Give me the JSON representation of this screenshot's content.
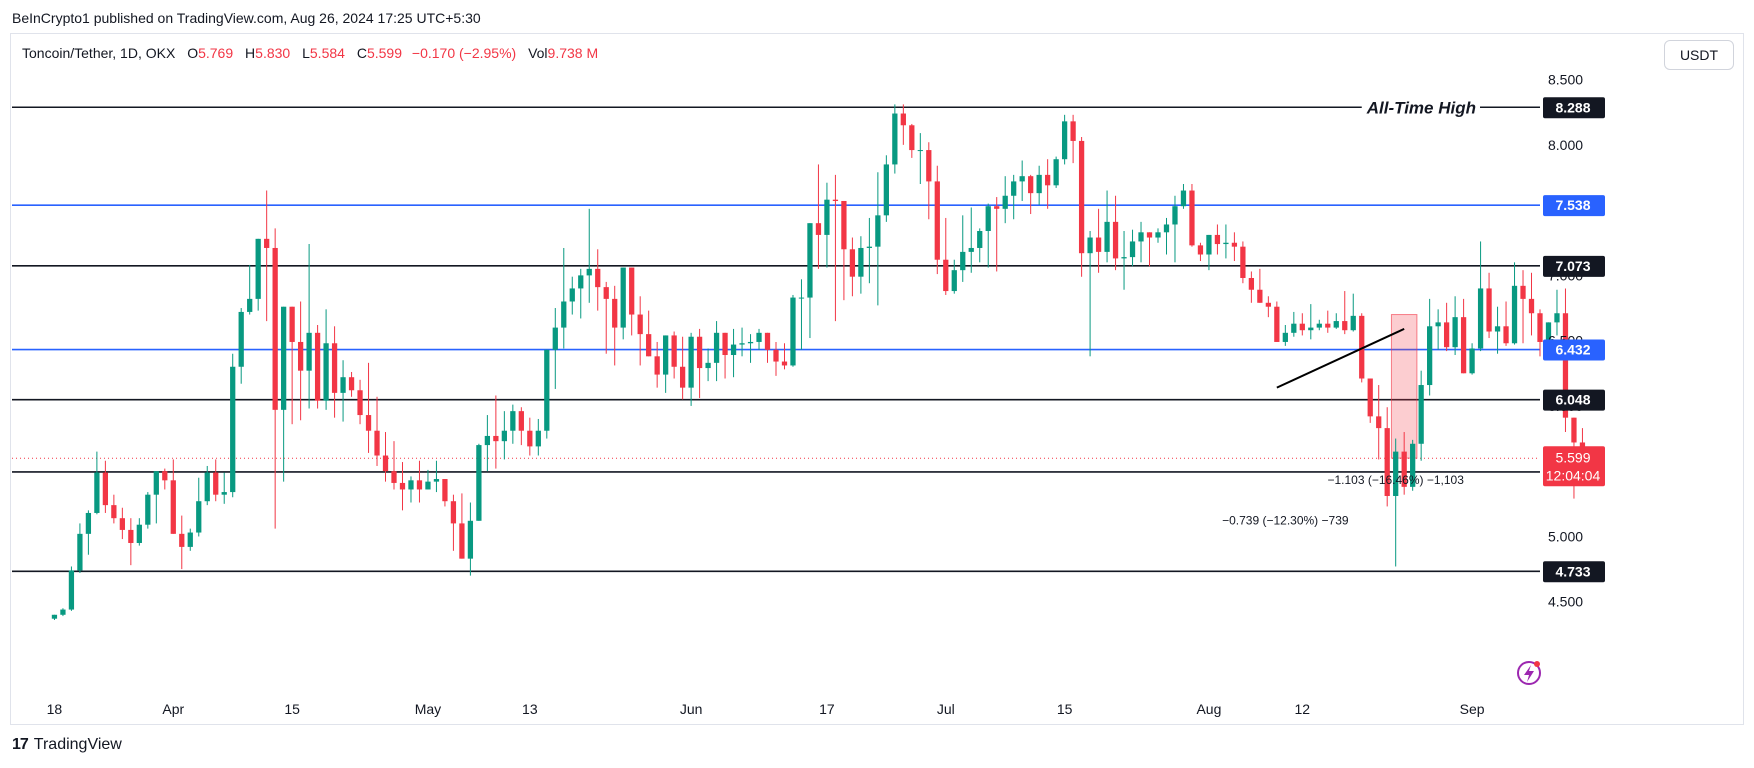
{
  "publisher": "BeInCrypto1 published on TradingView.com, Aug 26, 2024 17:25 UTC+5:30",
  "legend": {
    "symbol": "Toncoin/Tether, 1D, OKX",
    "open_key": "O",
    "open_val": "5.769",
    "high_key": "H",
    "high_val": "5.830",
    "low_key": "L",
    "low_val": "5.584",
    "close_key": "C",
    "close_val": "5.599",
    "change": "−0.170 (−2.95%)",
    "vol_key": "Vol",
    "vol_val": "9.738 M"
  },
  "currency_button": "USDT",
  "footer": {
    "brand": "TradingView",
    "logo_mark": "17"
  },
  "colors": {
    "up": "#089981",
    "down": "#f23645",
    "support_line": "#131722",
    "blue_line": "#2962ff",
    "grid_text": "#131722"
  },
  "chart_data": {
    "type": "candlestick",
    "y_scale": "linear",
    "ylim": [
      4.36,
      8.65
    ],
    "y_tick_labels": [
      "8.500",
      "8.000",
      "7.500",
      "7.000",
      "6.500",
      "6.000",
      "5.500",
      "5.000",
      "4.500"
    ],
    "y_tick_values": [
      8.5,
      8.0,
      7.5,
      7.0,
      6.5,
      6.0,
      5.5,
      5.0,
      4.5
    ],
    "x_tick_labels": [
      {
        "label": "18",
        "date": "2024-03-18"
      },
      {
        "label": "Apr",
        "date": "2024-04-01"
      },
      {
        "label": "15",
        "date": "2024-04-15"
      },
      {
        "label": "May",
        "date": "2024-05-01"
      },
      {
        "label": "13",
        "date": "2024-05-13"
      },
      {
        "label": "Jun",
        "date": "2024-06-01"
      },
      {
        "label": "17",
        "date": "2024-06-17"
      },
      {
        "label": "Jul",
        "date": "2024-07-01"
      },
      {
        "label": "15",
        "date": "2024-07-15"
      },
      {
        "label": "Aug",
        "date": "2024-08-01"
      },
      {
        "label": "12",
        "date": "2024-08-12"
      },
      {
        "label": "Sep",
        "date": "2024-09-01"
      }
    ],
    "date_range": [
      "2024-03-13",
      "2024-09-09"
    ],
    "first_candle_date": "2024-03-18",
    "candles_ohlc": [
      [
        4.37,
        4.4,
        4.36,
        4.4
      ],
      [
        4.4,
        4.45,
        4.39,
        4.44
      ],
      [
        4.44,
        4.77,
        4.43,
        4.74
      ],
      [
        4.74,
        5.1,
        4.72,
        5.02
      ],
      [
        5.02,
        5.2,
        4.86,
        5.18
      ],
      [
        5.18,
        5.65,
        5.17,
        5.49
      ],
      [
        5.49,
        5.58,
        5.18,
        5.24
      ],
      [
        5.24,
        5.32,
        5.1,
        5.14
      ],
      [
        5.14,
        5.22,
        4.98,
        5.05
      ],
      [
        5.05,
        5.14,
        4.78,
        4.95
      ],
      [
        4.95,
        5.14,
        4.93,
        5.09
      ],
      [
        5.09,
        5.34,
        5.06,
        5.32
      ],
      [
        5.32,
        5.45,
        5.1,
        5.5
      ],
      [
        5.5,
        5.52,
        5.36,
        5.43
      ],
      [
        5.43,
        5.59,
        5.04,
        5.02
      ],
      [
        5.02,
        5.16,
        4.75,
        4.92
      ],
      [
        4.92,
        5.06,
        4.89,
        5.03
      ],
      [
        5.03,
        5.45,
        5.0,
        5.27
      ],
      [
        5.27,
        5.54,
        5.24,
        5.49
      ],
      [
        5.49,
        5.59,
        5.27,
        5.32
      ],
      [
        5.32,
        5.49,
        5.25,
        5.34
      ],
      [
        5.34,
        6.4,
        5.3,
        6.3
      ],
      [
        6.3,
        6.75,
        6.17,
        6.72
      ],
      [
        6.72,
        7.08,
        6.7,
        6.82
      ],
      [
        6.82,
        7.14,
        6.73,
        7.28
      ],
      [
        7.28,
        7.65,
        6.65,
        7.21
      ],
      [
        7.21,
        7.36,
        5.06,
        5.97
      ],
      [
        5.97,
        6.72,
        5.42,
        6.76
      ],
      [
        6.76,
        6.73,
        5.86,
        6.49
      ],
      [
        6.49,
        6.8,
        5.89,
        6.27
      ],
      [
        6.27,
        7.24,
        5.98,
        6.56
      ],
      [
        6.56,
        6.62,
        5.98,
        6.04
      ],
      [
        6.04,
        6.74,
        5.97,
        6.48
      ],
      [
        6.48,
        6.61,
        5.91,
        6.1
      ],
      [
        6.1,
        6.35,
        5.88,
        6.22
      ],
      [
        6.22,
        6.26,
        6.07,
        6.12
      ],
      [
        6.12,
        6.2,
        5.86,
        5.93
      ],
      [
        5.93,
        6.33,
        5.64,
        5.81
      ],
      [
        5.81,
        6.07,
        5.54,
        5.62
      ],
      [
        5.62,
        5.8,
        5.42,
        5.5
      ],
      [
        5.5,
        5.73,
        5.36,
        5.41
      ],
      [
        5.41,
        5.57,
        5.2,
        5.36
      ],
      [
        5.36,
        5.46,
        5.26,
        5.43
      ],
      [
        5.43,
        5.58,
        5.26,
        5.36
      ],
      [
        5.36,
        5.51,
        5.37,
        5.42
      ],
      [
        5.42,
        5.58,
        5.34,
        5.44
      ],
      [
        5.44,
        5.43,
        5.23,
        5.27
      ],
      [
        5.27,
        5.32,
        4.89,
        5.1
      ],
      [
        5.1,
        5.33,
        4.85,
        4.83
      ],
      [
        4.83,
        5.26,
        4.7,
        5.12
      ],
      [
        5.12,
        5.71,
        5.12,
        5.7
      ],
      [
        5.7,
        5.93,
        5.5,
        5.77
      ],
      [
        5.77,
        6.08,
        5.52,
        5.73
      ],
      [
        5.73,
        5.96,
        5.59,
        5.81
      ],
      [
        5.81,
        6.01,
        5.71,
        5.96
      ],
      [
        5.96,
        5.99,
        5.7,
        5.81
      ],
      [
        5.81,
        5.91,
        5.62,
        5.69
      ],
      [
        5.69,
        5.9,
        5.62,
        5.81
      ],
      [
        5.81,
        6.37,
        5.75,
        6.43
      ],
      [
        6.43,
        6.75,
        6.13,
        6.6
      ],
      [
        6.6,
        7.21,
        6.44,
        6.8
      ],
      [
        6.8,
        6.99,
        6.7,
        6.9
      ],
      [
        6.9,
        7.05,
        6.67,
        7.0
      ],
      [
        7.0,
        7.51,
        6.79,
        7.05
      ],
      [
        7.05,
        7.2,
        6.73,
        6.91
      ],
      [
        6.91,
        6.95,
        6.4,
        6.82
      ],
      [
        6.82,
        6.92,
        6.31,
        6.6
      ],
      [
        6.6,
        7.03,
        6.51,
        7.06
      ],
      [
        7.06,
        7.03,
        6.54,
        6.7
      ],
      [
        6.7,
        6.84,
        6.31,
        6.55
      ],
      [
        6.55,
        6.73,
        6.4,
        6.38
      ],
      [
        6.38,
        6.49,
        6.14,
        6.24
      ],
      [
        6.24,
        6.51,
        6.1,
        6.54
      ],
      [
        6.54,
        6.57,
        6.21,
        6.3
      ],
      [
        6.3,
        6.53,
        6.05,
        6.14
      ],
      [
        6.14,
        6.56,
        6.0,
        6.53
      ],
      [
        6.53,
        6.59,
        6.06,
        6.29
      ],
      [
        6.29,
        6.44,
        6.19,
        6.33
      ],
      [
        6.33,
        6.65,
        6.19,
        6.56
      ],
      [
        6.56,
        6.5,
        6.21,
        6.39
      ],
      [
        6.39,
        6.59,
        6.22,
        6.47
      ],
      [
        6.47,
        6.6,
        6.38,
        6.48
      ],
      [
        6.48,
        6.55,
        6.33,
        6.49
      ],
      [
        6.49,
        6.59,
        6.43,
        6.56
      ],
      [
        6.56,
        6.52,
        6.33,
        6.43
      ],
      [
        6.43,
        6.49,
        6.23,
        6.34
      ],
      [
        6.34,
        6.48,
        6.28,
        6.31
      ],
      [
        6.31,
        6.85,
        6.3,
        6.83
      ],
      [
        6.83,
        6.97,
        6.43,
        6.83
      ],
      [
        6.83,
        7.37,
        6.52,
        7.4
      ],
      [
        7.4,
        7.85,
        7.05,
        7.31
      ],
      [
        7.31,
        7.71,
        7.06,
        7.58
      ],
      [
        7.58,
        7.77,
        6.65,
        7.57
      ],
      [
        7.57,
        7.35,
        6.81,
        7.2
      ],
      [
        7.2,
        7.29,
        6.84,
        6.99
      ],
      [
        6.99,
        7.3,
        6.86,
        7.21
      ],
      [
        7.21,
        7.44,
        6.94,
        7.22
      ],
      [
        7.22,
        7.79,
        6.77,
        7.46
      ],
      [
        7.46,
        7.92,
        7.41,
        7.85
      ],
      [
        7.85,
        8.31,
        7.78,
        8.24
      ],
      [
        8.24,
        8.31,
        8.0,
        8.15
      ],
      [
        8.15,
        8.16,
        7.9,
        7.96
      ],
      [
        7.96,
        8.09,
        7.7,
        7.96
      ],
      [
        7.96,
        8.02,
        7.43,
        7.72
      ],
      [
        7.72,
        7.84,
        7.01,
        7.12
      ],
      [
        7.12,
        7.44,
        6.85,
        6.88
      ],
      [
        6.88,
        7.12,
        6.86,
        7.04
      ],
      [
        7.04,
        7.46,
        6.95,
        7.18
      ],
      [
        7.18,
        7.52,
        7.02,
        7.21
      ],
      [
        7.21,
        7.36,
        7.1,
        7.34
      ],
      [
        7.34,
        7.55,
        7.06,
        7.53
      ],
      [
        7.53,
        7.6,
        7.03,
        7.51
      ],
      [
        7.51,
        7.76,
        7.4,
        7.61
      ],
      [
        7.61,
        7.77,
        7.43,
        7.72
      ],
      [
        7.72,
        7.88,
        7.57,
        7.76
      ],
      [
        7.76,
        7.77,
        7.47,
        7.63
      ],
      [
        7.63,
        7.84,
        7.54,
        7.77
      ],
      [
        7.77,
        7.89,
        7.51,
        7.69
      ],
      [
        7.69,
        7.91,
        7.67,
        7.89
      ],
      [
        7.89,
        8.23,
        7.85,
        8.18
      ],
      [
        8.18,
        8.23,
        7.86,
        8.03
      ],
      [
        8.03,
        8.06,
        6.99,
        7.17
      ],
      [
        7.17,
        7.34,
        6.38,
        7.29
      ],
      [
        7.29,
        7.51,
        7.02,
        7.18
      ],
      [
        7.18,
        7.65,
        7.1,
        7.41
      ],
      [
        7.41,
        7.61,
        7.04,
        7.13
      ],
      [
        7.13,
        7.34,
        6.89,
        7.14
      ],
      [
        7.14,
        7.35,
        7.07,
        7.26
      ],
      [
        7.26,
        7.41,
        7.1,
        7.33
      ],
      [
        7.33,
        7.33,
        7.07,
        7.29
      ],
      [
        7.29,
        7.36,
        7.25,
        7.33
      ],
      [
        7.33,
        7.44,
        7.16,
        7.39
      ],
      [
        7.39,
        7.61,
        7.1,
        7.53
      ],
      [
        7.53,
        7.7,
        7.51,
        7.65
      ],
      [
        7.65,
        7.7,
        7.22,
        7.23
      ],
      [
        7.23,
        7.25,
        7.11,
        7.16
      ],
      [
        7.16,
        7.25,
        7.04,
        7.31
      ],
      [
        7.31,
        7.39,
        7.16,
        7.24
      ],
      [
        7.24,
        7.39,
        7.13,
        7.25
      ],
      [
        7.25,
        7.33,
        7.11,
        7.22
      ],
      [
        7.22,
        7.26,
        6.94,
        6.98
      ],
      [
        6.98,
        7.03,
        6.79,
        6.89
      ],
      [
        6.89,
        7.05,
        6.81,
        6.79
      ],
      [
        6.79,
        6.84,
        6.68,
        6.76
      ],
      [
        6.76,
        6.8,
        6.5,
        6.49
      ],
      [
        6.49,
        6.62,
        6.46,
        6.56
      ],
      [
        6.56,
        6.72,
        6.53,
        6.63
      ],
      [
        6.63,
        6.71,
        6.54,
        6.58
      ],
      [
        6.58,
        6.78,
        6.51,
        6.6
      ],
      [
        6.6,
        6.66,
        6.58,
        6.63
      ],
      [
        6.63,
        6.73,
        6.56,
        6.6
      ],
      [
        6.6,
        6.71,
        6.59,
        6.65
      ],
      [
        6.65,
        6.88,
        6.55,
        6.58
      ],
      [
        6.58,
        6.86,
        6.57,
        6.69
      ],
      [
        6.69,
        6.71,
        6.18,
        6.21
      ],
      [
        6.21,
        6.14,
        5.87,
        5.92
      ],
      [
        5.92,
        6.16,
        5.59,
        5.83
      ],
      [
        5.83,
        5.99,
        5.23,
        5.31
      ],
      [
        5.31,
        5.75,
        4.77,
        5.65
      ],
      [
        5.65,
        5.8,
        5.32,
        5.38
      ],
      [
        5.38,
        5.74,
        5.35,
        5.71
      ],
      [
        5.71,
        6.27,
        5.58,
        6.16
      ],
      [
        6.16,
        6.82,
        6.08,
        6.61
      ],
      [
        6.61,
        6.74,
        6.43,
        6.64
      ],
      [
        6.64,
        6.79,
        6.42,
        6.45
      ],
      [
        6.45,
        6.84,
        6.39,
        6.68
      ],
      [
        6.68,
        6.82,
        6.42,
        6.25
      ],
      [
        6.25,
        6.48,
        6.24,
        6.44
      ],
      [
        6.44,
        7.26,
        6.42,
        6.9
      ],
      [
        6.9,
        7.02,
        6.52,
        6.57
      ],
      [
        6.57,
        6.76,
        6.4,
        6.61
      ],
      [
        6.61,
        6.8,
        6.46,
        6.48
      ],
      [
        6.48,
        7.1,
        6.47,
        6.92
      ],
      [
        6.92,
        7.04,
        6.48,
        6.82
      ],
      [
        6.82,
        7.02,
        6.54,
        6.71
      ],
      [
        6.71,
        6.74,
        6.38,
        6.49
      ],
      [
        6.49,
        6.55,
        6.43,
        6.64
      ],
      [
        6.64,
        6.89,
        6.54,
        6.71
      ],
      [
        6.71,
        6.9,
        5.8,
        5.91
      ],
      [
        5.91,
        5.89,
        5.29,
        5.72
      ],
      [
        5.72,
        5.83,
        5.58,
        5.6
      ]
    ],
    "horizontal_levels": [
      {
        "value": 8.288,
        "label": "8.288",
        "style": "black",
        "annotation": "All-Time High"
      },
      {
        "value": 7.538,
        "label": "7.538",
        "style": "blue"
      },
      {
        "value": 7.073,
        "label": "7.073",
        "style": "black"
      },
      {
        "value": 6.432,
        "label": "6.432",
        "style": "blue"
      },
      {
        "value": 6.048,
        "label": "6.048",
        "style": "black"
      },
      {
        "value": 5.494,
        "label": "5.494",
        "style": "black"
      },
      {
        "value": 4.733,
        "label": "4.733",
        "style": "black"
      }
    ],
    "current_price": {
      "value": 5.599,
      "label": "5.599",
      "countdown": "12:04:04"
    },
    "trendline": {
      "from": {
        "date": "2024-08-09",
        "price": 6.14
      },
      "to": {
        "date": "2024-08-24",
        "price": 6.59
      }
    },
    "measure_annotations": [
      {
        "text": "−0.739 (−12.30%) −739",
        "near_date": "2024-08-10",
        "near_price": 5.09
      },
      {
        "text": "−1.103 (−16.46%) −1,103",
        "near_date": "2024-08-23",
        "near_price": 5.4
      }
    ],
    "measure_box": {
      "from_date": "2024-08-23",
      "to_date": "2024-08-25",
      "top": 6.7,
      "bottom": 5.6
    }
  }
}
